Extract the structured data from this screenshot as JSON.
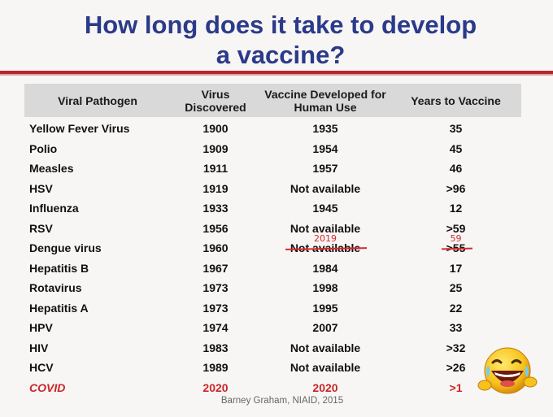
{
  "title_line1": "How long does it take to develop",
  "title_line2": "a vaccine?",
  "headers": {
    "pathogen": "Viral Pathogen",
    "discovered": "Virus Discovered",
    "developed": "Vaccine Developed for Human Use",
    "years": "Years to Vaccine"
  },
  "rows": [
    {
      "pathogen": "Yellow Fever Virus",
      "discovered": "1900",
      "developed": "1935",
      "years": "35"
    },
    {
      "pathogen": "Polio",
      "discovered": "1909",
      "developed": "1954",
      "years": "45"
    },
    {
      "pathogen": "Measles",
      "discovered": "1911",
      "developed": "1957",
      "years": "46"
    },
    {
      "pathogen": "HSV",
      "discovered": "1919",
      "developed": "Not available",
      "years": ">96"
    },
    {
      "pathogen": "Influenza",
      "discovered": "1933",
      "developed": "1945",
      "years": "12"
    },
    {
      "pathogen": "RSV",
      "discovered": "1956",
      "developed": "Not available",
      "years": ">59"
    },
    {
      "pathogen": "Dengue virus",
      "discovered": "1960",
      "developed": "Not available",
      "developed_correction": "2019",
      "years": ">55",
      "years_correction": "59"
    },
    {
      "pathogen": "Hepatitis B",
      "discovered": "1967",
      "developed": "1984",
      "years": "17"
    },
    {
      "pathogen": "Rotavirus",
      "discovered": "1973",
      "developed": "1998",
      "years": "25"
    },
    {
      "pathogen": "Hepatitis A",
      "discovered": "1973",
      "developed": "1995",
      "years": "22"
    },
    {
      "pathogen": "HPV",
      "discovered": "1974",
      "developed": "2007",
      "years": "33"
    },
    {
      "pathogen": "HIV",
      "discovered": "1983",
      "developed": "Not available",
      "years": ">32"
    },
    {
      "pathogen": "HCV",
      "discovered": "1989",
      "developed": "Not available",
      "years": ">26"
    },
    {
      "pathogen": "COVID",
      "discovered": "2020",
      "developed": "2020",
      "years": ">1"
    }
  ],
  "citation": "Barney Graham, NIAID, 2015",
  "emoji": "laughing-face-icon",
  "colors": {
    "title": "#2b3a8a",
    "rule": "#b5272c",
    "annotation": "#d8292d"
  }
}
